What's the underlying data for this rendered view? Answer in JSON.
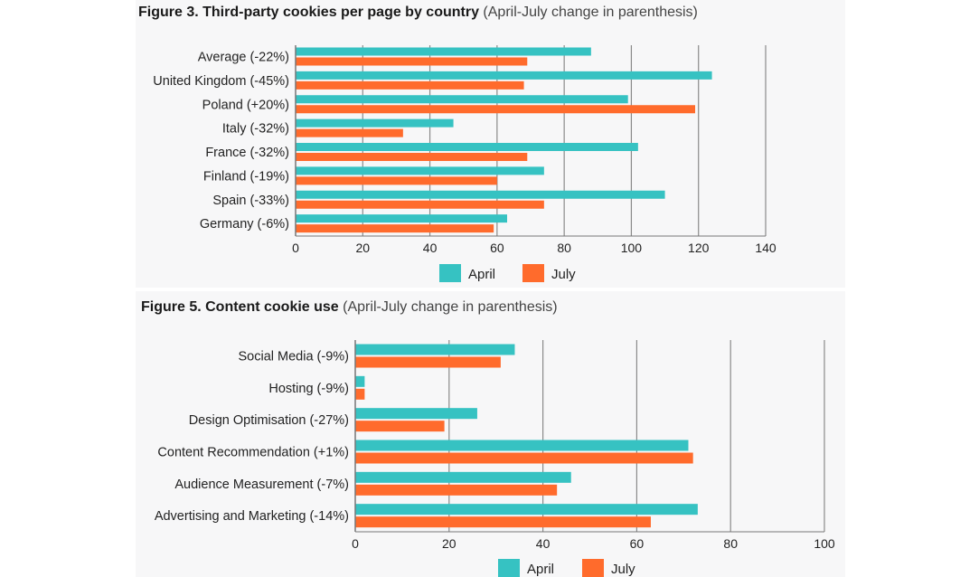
{
  "colors": {
    "april": "#36c2c2",
    "july": "#ff6b2c",
    "grid": "#8a8a8a",
    "axis": "#777777",
    "panel": "#f7f7f8"
  },
  "figure3": {
    "title_bold": "Figure 3. Third-party cookies per page by country",
    "title_note": "(April-July change in parenthesis)"
  },
  "figure5": {
    "title_bold": "Figure 5. Content cookie use",
    "title_note": "(April-July change in parenthesis)"
  },
  "chart_data": [
    {
      "type": "bar",
      "orientation": "horizontal",
      "categories": [
        "Average (-22%)",
        "United Kingdom (-45%)",
        "Poland (+20%)",
        "Italy (-32%)",
        "France (-32%)",
        "Finland (-19%)",
        "Spain (-33%)",
        "Germany (-6%)"
      ],
      "series": [
        {
          "name": "April",
          "color": "#36c2c2",
          "values": [
            88,
            124,
            99,
            47,
            102,
            74,
            110,
            63
          ]
        },
        {
          "name": "July",
          "color": "#ff6b2c",
          "values": [
            69,
            68,
            119,
            32,
            69,
            60,
            74,
            59
          ]
        }
      ],
      "xlim": [
        0,
        140
      ],
      "xticks": [
        "0",
        "20",
        "40",
        "60",
        "80",
        "100",
        "120",
        "140"
      ],
      "grid": true,
      "legend": "bottom"
    },
    {
      "type": "bar",
      "orientation": "horizontal",
      "categories": [
        "Social Media (-9%)",
        "Hosting (-9%)",
        "Design Optimisation (-27%)",
        "Content Recommendation (+1%)",
        "Audience Measurement (-7%)",
        "Advertising and Marketing (-14%)"
      ],
      "series": [
        {
          "name": "April",
          "color": "#36c2c2",
          "values": [
            34,
            2,
            26,
            71,
            46,
            73
          ]
        },
        {
          "name": "July",
          "color": "#ff6b2c",
          "values": [
            31,
            2,
            19,
            72,
            43,
            63
          ]
        }
      ],
      "xlim": [
        0,
        100
      ],
      "xticks": [
        "0",
        "20",
        "40",
        "60",
        "80",
        "100"
      ],
      "grid": true,
      "legend": "bottom"
    }
  ]
}
